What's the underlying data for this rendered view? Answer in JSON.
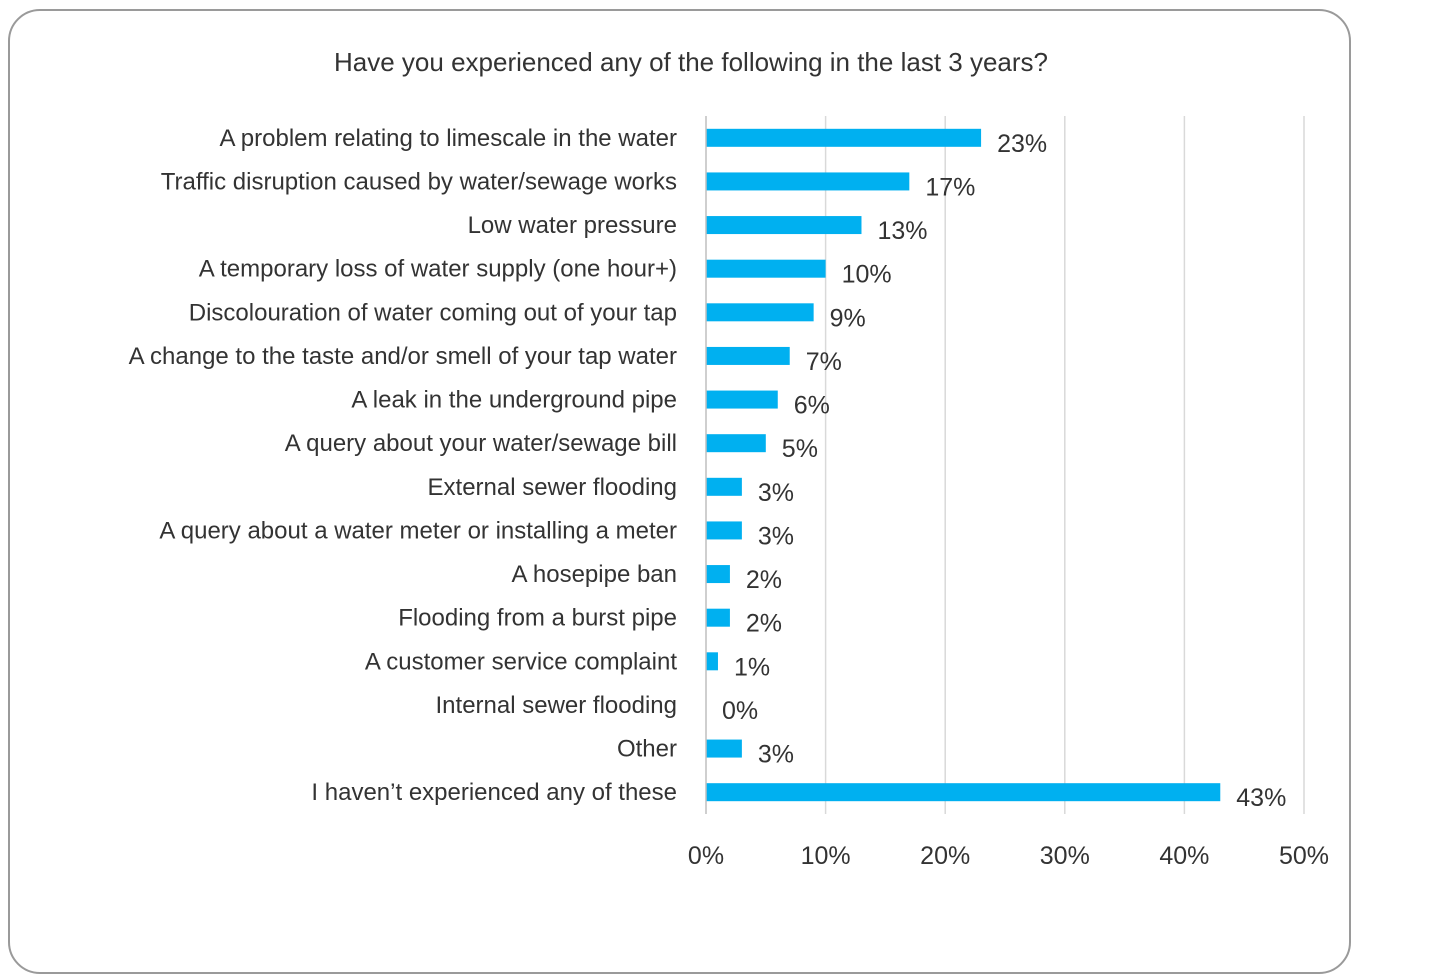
{
  "chart_data": {
    "type": "bar",
    "orientation": "horizontal",
    "title": "Have you experienced any of the following in the last 3 years?",
    "categories": [
      "A problem relating to limescale in the water",
      "Traffic disruption caused by water/sewage works",
      "Low water pressure",
      "A temporary loss of water supply (one hour+)",
      "Discolouration of water coming out of your tap",
      "A change to the taste and/or smell of your tap water",
      "A leak in the underground pipe",
      "A query about your water/sewage bill",
      "External sewer flooding",
      "A query about a water meter or installing a meter",
      "A hosepipe ban",
      "Flooding from a burst pipe",
      "A customer service complaint",
      "Internal sewer flooding",
      "Other",
      "I haven’t experienced any of these"
    ],
    "values": [
      23,
      17,
      13,
      10,
      9,
      7,
      6,
      5,
      3,
      3,
      2,
      2,
      1,
      0,
      3,
      43
    ],
    "data_labels": [
      "23%",
      "17%",
      "13%",
      "10%",
      "9%",
      "7%",
      "6%",
      "5%",
      "3%",
      "3%",
      "2%",
      "2%",
      "1%",
      "0%",
      "3%",
      "43%"
    ],
    "xlim": [
      0,
      50
    ],
    "x_ticks": [
      "0%",
      "10%",
      "20%",
      "30%",
      "40%",
      "50%"
    ],
    "xlabel": "",
    "ylabel": "",
    "grid": "vertical",
    "legend": "none",
    "bar_color": "#00b0f0",
    "grid_color": "#d9d9d9"
  }
}
